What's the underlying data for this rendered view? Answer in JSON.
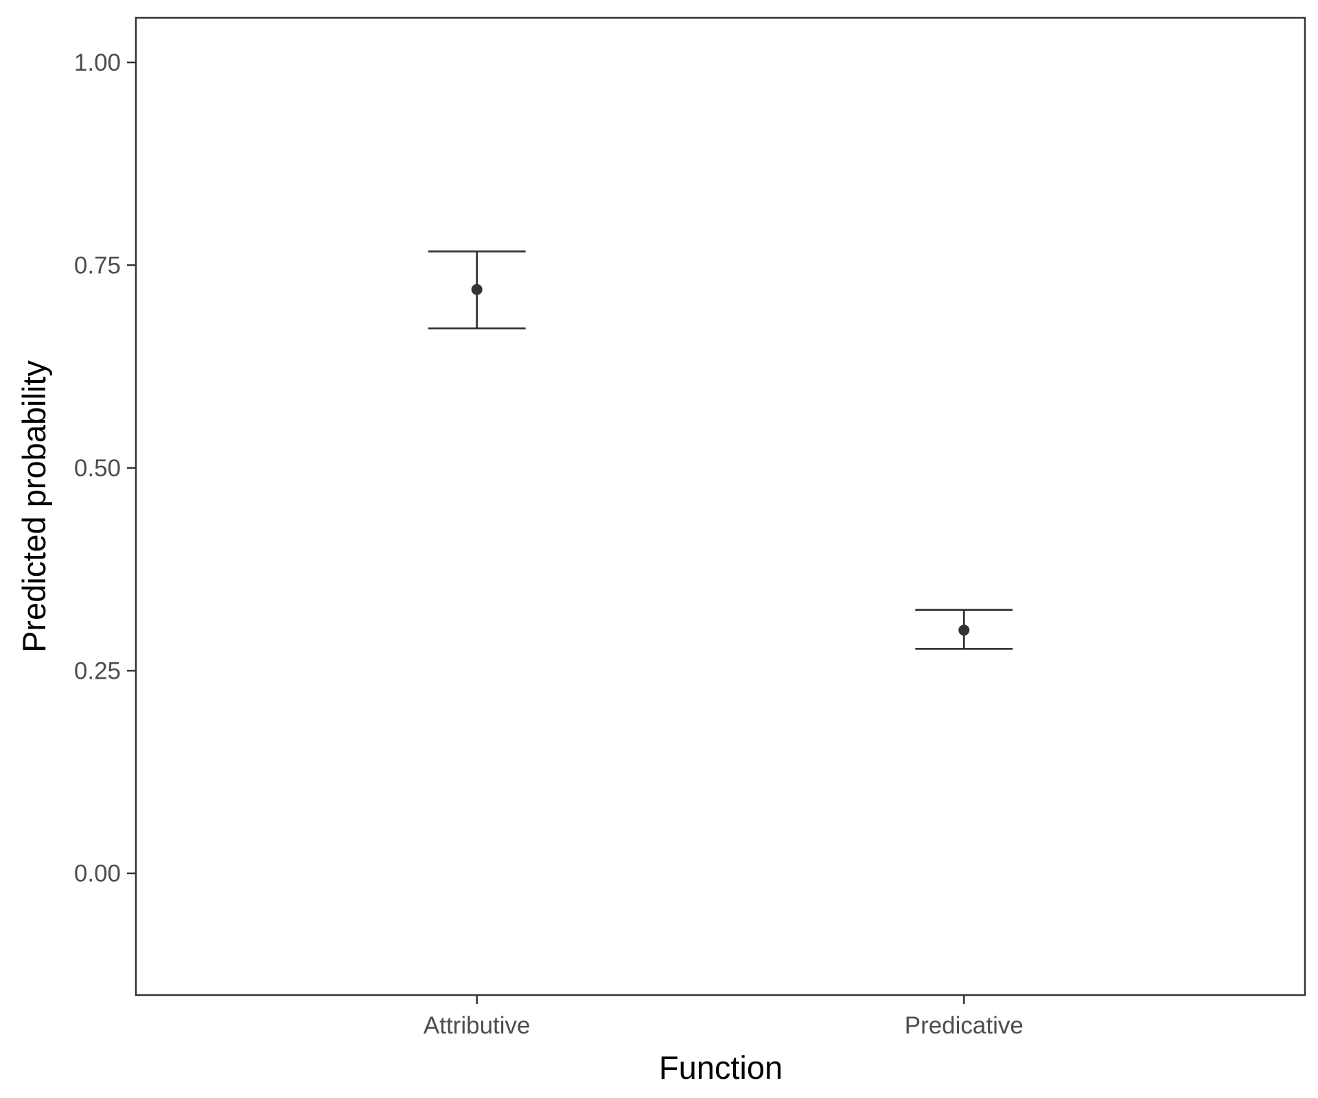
{
  "chart_data": {
    "type": "scatter",
    "subtype": "pointrange-errorbar",
    "title": "",
    "xlabel": "Function",
    "ylabel": "Predicted probability",
    "categories": [
      "Attributive",
      "Predicative"
    ],
    "points": [
      {
        "category": "Attributive",
        "estimate": 0.72,
        "lower": 0.672,
        "upper": 0.767
      },
      {
        "category": "Predicative",
        "estimate": 0.3,
        "lower": 0.277,
        "upper": 0.325
      }
    ],
    "ylim": [
      -0.15,
      1.055
    ],
    "y_ticks": [
      0.0,
      0.25,
      0.5,
      0.75,
      1.0
    ],
    "y_tick_labels": [
      "0.00",
      "0.25",
      "0.50",
      "0.75",
      "1.00"
    ],
    "grid": false,
    "legend": "none",
    "colors": {
      "mark": "#333333",
      "axis": "#333333",
      "tick_text": "#4d4d4d"
    }
  }
}
